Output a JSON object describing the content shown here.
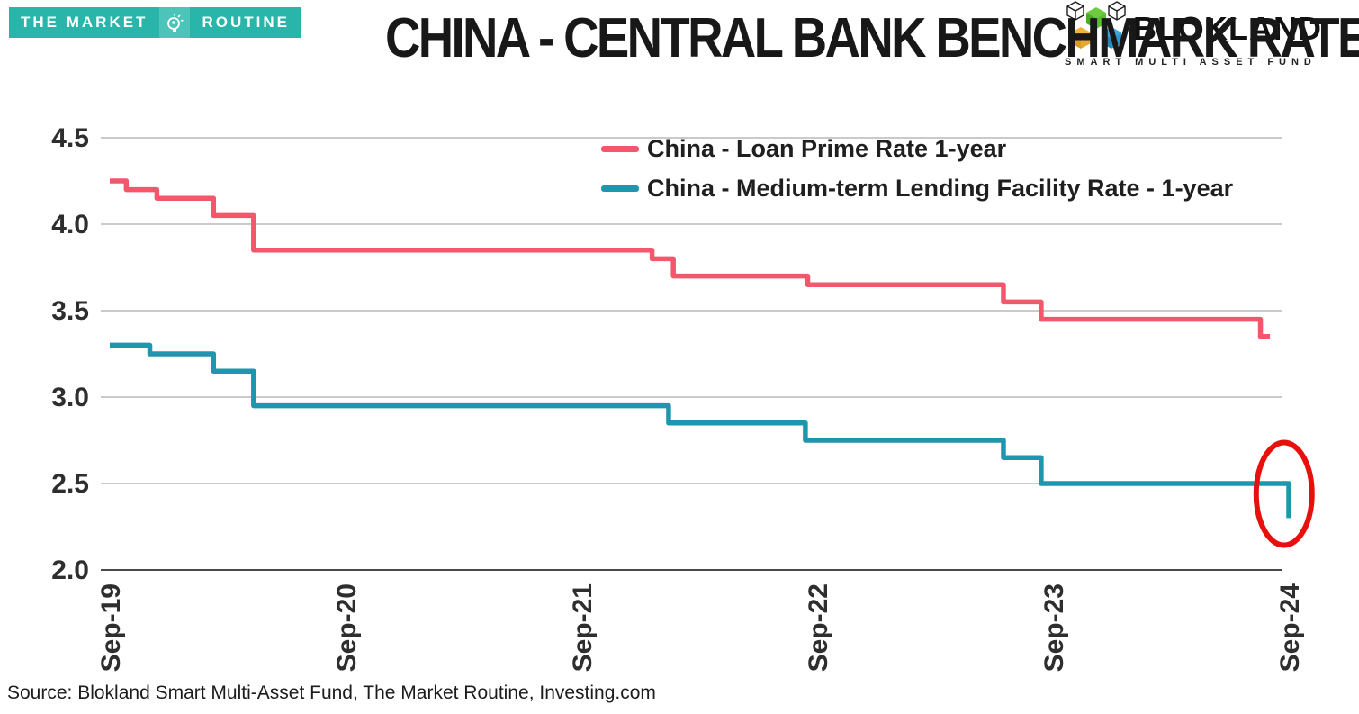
{
  "header": {
    "market_routine_logo": {
      "left_text": "THE MARKET",
      "right_text": "ROUTINE"
    },
    "title": "CHINA - CENTRAL BANK BENCHMARK RATES",
    "blokland_logo": {
      "name": "BLOKLAND",
      "subtitle": "SMART MULTI ASSET FUND"
    }
  },
  "footer": {
    "source": "Source: Blokland Smart Multi-Asset Fund, The Market Routine, Investing.com"
  },
  "brand_colors": {
    "teal_bar": "#2ab5ab",
    "annotation_red": "#e8100c"
  },
  "chart_data": {
    "type": "line",
    "step": true,
    "title": "CHINA - CENTRAL BANK BENCHMARK RATES",
    "x_tick_labels": [
      "Sep-19",
      "Sep-20",
      "Sep-21",
      "Sep-22",
      "Sep-23",
      "Sep-24"
    ],
    "y_ticks": [
      4.5,
      4.0,
      3.5,
      3.0,
      2.5,
      2.0
    ],
    "ylim": [
      2.0,
      4.5
    ],
    "x_years_range": [
      0,
      5
    ],
    "grid": true,
    "legend_position": "top-center-inside",
    "series": [
      {
        "name": "China - Loan Prime Rate 1-year",
        "color": "#f4566c",
        "changes": [
          [
            0.0,
            4.25
          ],
          [
            0.07,
            4.2
          ],
          [
            0.2,
            4.15
          ],
          [
            0.44,
            4.05
          ],
          [
            0.61,
            3.85
          ],
          [
            2.3,
            3.8
          ],
          [
            2.39,
            3.7
          ],
          [
            2.96,
            3.65
          ],
          [
            3.79,
            3.55
          ],
          [
            3.95,
            3.45
          ],
          [
            4.88,
            3.35
          ]
        ],
        "end_year": 4.92
      },
      {
        "name": "China - Medium-term Lending Facility Rate - 1-year",
        "color": "#1e96ad",
        "changes": [
          [
            0.0,
            3.3
          ],
          [
            0.17,
            3.25
          ],
          [
            0.44,
            3.15
          ],
          [
            0.61,
            2.95
          ],
          [
            2.37,
            2.85
          ],
          [
            2.95,
            2.75
          ],
          [
            3.79,
            2.65
          ],
          [
            3.95,
            2.5
          ],
          [
            5.0,
            2.3
          ]
        ],
        "end_year": 5.0
      }
    ],
    "annotation": {
      "shape": "ellipse",
      "color": "#e8100c",
      "center_year": 4.98,
      "center_value": 2.44,
      "meaning": "highlights latest Medium-term Lending Facility rate cut to 2.30"
    }
  }
}
